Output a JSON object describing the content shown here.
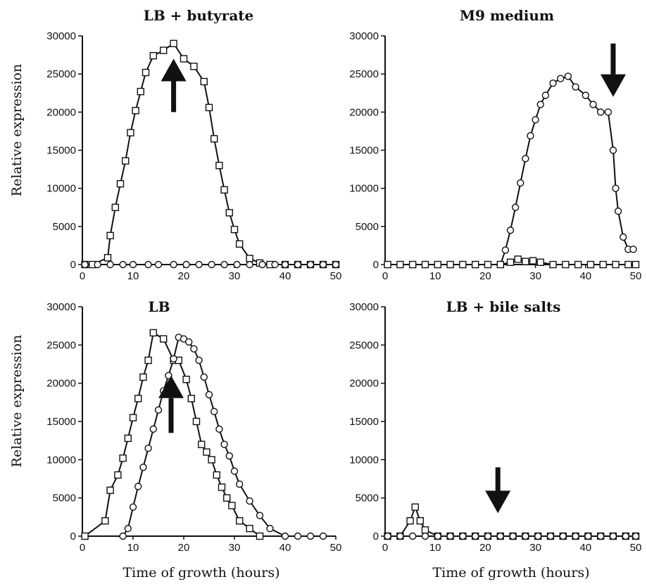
{
  "figure": {
    "xlabel": "Time of growth (hours)",
    "ylabel": "Relative expression"
  },
  "chart_data": [
    {
      "type": "line",
      "title": "LB + butyrate",
      "xlabel": "",
      "ylabel": "Relative expression",
      "xlim": [
        0,
        50
      ],
      "ylim": [
        0,
        30000
      ],
      "xticks": [
        0,
        10,
        20,
        30,
        40,
        50
      ],
      "yticks": [
        0,
        5000,
        10000,
        15000,
        20000,
        25000,
        30000
      ],
      "arrow": {
        "direction": "up",
        "x": 18,
        "y_tail": 20000,
        "y_head": 27000
      },
      "series": [
        {
          "marker": "square",
          "x": [
            0.5,
            2,
            5,
            5.5,
            6.5,
            7.5,
            8.5,
            9.5,
            10.5,
            11.5,
            12.5,
            14,
            16,
            18,
            20,
            22,
            24,
            25,
            26,
            27,
            28,
            29,
            30,
            31,
            33,
            35,
            37,
            40,
            42.5,
            45,
            47.5,
            50
          ],
          "y": [
            0,
            0,
            900,
            3800,
            7500,
            10600,
            13600,
            17300,
            20200,
            22700,
            25200,
            27400,
            28100,
            29000,
            27000,
            26000,
            24000,
            20600,
            16500,
            13000,
            9800,
            6800,
            4600,
            2700,
            800,
            200,
            0,
            0,
            0,
            0,
            0,
            0
          ]
        },
        {
          "marker": "circle",
          "x": [
            0.5,
            3,
            5.5,
            8,
            10,
            13,
            15,
            18,
            20.5,
            23,
            25.5,
            28,
            30.5,
            33,
            35.5,
            38,
            40,
            42.5,
            45,
            47.5,
            50
          ],
          "y": [
            0,
            0,
            0,
            0,
            0,
            0,
            0,
            0,
            0,
            0,
            0,
            0,
            0,
            0,
            0,
            0,
            0,
            0,
            0,
            0,
            0
          ]
        }
      ]
    },
    {
      "type": "line",
      "title": "M9 medium",
      "xlabel": "",
      "ylabel": "",
      "xlim": [
        0,
        50
      ],
      "ylim": [
        0,
        30000
      ],
      "xticks": [
        0,
        10,
        20,
        30,
        40,
        50
      ],
      "yticks": [
        0,
        5000,
        10000,
        15000,
        20000,
        25000,
        30000
      ],
      "arrow": {
        "direction": "down",
        "x": 45.5,
        "y_tail": 29000,
        "y_head": 22000
      },
      "series": [
        {
          "marker": "circle",
          "x": [
            0.5,
            3,
            5.5,
            8,
            10.5,
            13,
            15.5,
            18,
            20.5,
            23,
            24,
            25,
            26,
            27,
            28,
            29,
            30,
            31,
            32,
            33.5,
            35,
            36.5,
            38,
            40,
            41.5,
            43,
            44.5,
            45.5,
            46,
            46.5,
            47.5,
            48.5,
            49.5
          ],
          "y": [
            0,
            0,
            0,
            0,
            0,
            0,
            0,
            0,
            0,
            0,
            1900,
            4500,
            7500,
            10700,
            13900,
            16900,
            19000,
            21000,
            22200,
            23800,
            24400,
            24700,
            23300,
            22200,
            21000,
            20000,
            20000,
            15000,
            10000,
            7000,
            3600,
            2000,
            2000
          ]
        },
        {
          "marker": "square",
          "x": [
            0.5,
            3,
            5.5,
            8,
            10.5,
            13,
            15.5,
            18,
            20.5,
            23,
            25,
            26.5,
            28,
            29.5,
            31,
            33.5,
            36,
            38.5,
            41,
            43.5,
            46,
            48.5,
            50
          ],
          "y": [
            0,
            0,
            0,
            0,
            0,
            0,
            0,
            0,
            0,
            0,
            300,
            700,
            400,
            500,
            300,
            0,
            0,
            0,
            0,
            0,
            0,
            0,
            0
          ]
        }
      ]
    },
    {
      "type": "line",
      "title": "LB",
      "xlabel": "Time of growth (hours)",
      "ylabel": "Relative expression",
      "xlim": [
        0,
        50
      ],
      "ylim": [
        0,
        30000
      ],
      "xticks": [
        0,
        10,
        20,
        30,
        40,
        50
      ],
      "yticks": [
        0,
        5000,
        10000,
        15000,
        20000,
        25000,
        30000
      ],
      "arrow": {
        "direction": "up",
        "x": 17.5,
        "y_tail": 13500,
        "y_head": 21000
      },
      "series": [
        {
          "marker": "square",
          "x": [
            0.5,
            4.5,
            5.5,
            7,
            8,
            9,
            10,
            11,
            12,
            13,
            14,
            16,
            18,
            19,
            20.5,
            21.5,
            22.5,
            23.5,
            24.5,
            25.5,
            26.5,
            27.5,
            28.5,
            29.5,
            31,
            33,
            35
          ],
          "y": [
            0,
            2000,
            6000,
            8000,
            10200,
            12800,
            15500,
            18000,
            20800,
            23000,
            26600,
            25800,
            23000,
            23000,
            20500,
            18000,
            15000,
            12000,
            11000,
            10000,
            8000,
            6400,
            5000,
            4000,
            2000,
            1000,
            0
          ]
        },
        {
          "marker": "circle",
          "x": [
            8,
            9,
            10,
            11,
            12,
            13,
            14,
            15,
            16,
            17,
            18,
            19,
            20,
            21,
            22,
            23,
            24,
            25,
            26,
            27,
            28,
            29,
            30,
            31,
            33,
            35,
            37,
            40,
            42.5,
            45,
            47.5
          ],
          "y": [
            0,
            1000,
            3800,
            6500,
            9000,
            11500,
            14000,
            16500,
            19000,
            21000,
            23200,
            26000,
            25800,
            25400,
            24500,
            23000,
            20800,
            18500,
            16300,
            14000,
            12000,
            10500,
            8500,
            6800,
            4600,
            2700,
            1000,
            0,
            0,
            0,
            0
          ]
        }
      ]
    },
    {
      "type": "line",
      "title": "LB + bile salts",
      "xlabel": "Time of growth (hours)",
      "ylabel": "",
      "xlim": [
        0,
        50
      ],
      "ylim": [
        0,
        30000
      ],
      "xticks": [
        0,
        10,
        20,
        30,
        40,
        50
      ],
      "yticks": [
        0,
        5000,
        10000,
        15000,
        20000,
        25000,
        30000
      ],
      "arrow": {
        "direction": "down",
        "x": 22.5,
        "y_tail": 9000,
        "y_head": 3000
      },
      "series": [
        {
          "marker": "square",
          "x": [
            0.5,
            3,
            5,
            6,
            7,
            8,
            10.5,
            13,
            15.5,
            18,
            20.5,
            23,
            25.5,
            28,
            30.5,
            33,
            35.5,
            38,
            40.5,
            43,
            45.5,
            48,
            50
          ],
          "y": [
            0,
            0,
            2000,
            3800,
            2000,
            800,
            0,
            0,
            0,
            0,
            0,
            0,
            0,
            0,
            0,
            0,
            0,
            0,
            0,
            0,
            0,
            0,
            0
          ]
        },
        {
          "marker": "circle",
          "x": [
            0.5,
            3,
            5.5,
            8,
            10.5,
            13,
            15.5,
            18,
            20.5,
            23,
            25.5,
            28,
            30.5,
            33,
            35.5,
            38,
            40.5,
            43,
            45.5,
            48,
            50
          ],
          "y": [
            0,
            0,
            0,
            0,
            0,
            0,
            0,
            0,
            0,
            0,
            0,
            0,
            0,
            0,
            0,
            0,
            0,
            0,
            0,
            0,
            0
          ]
        }
      ]
    }
  ]
}
